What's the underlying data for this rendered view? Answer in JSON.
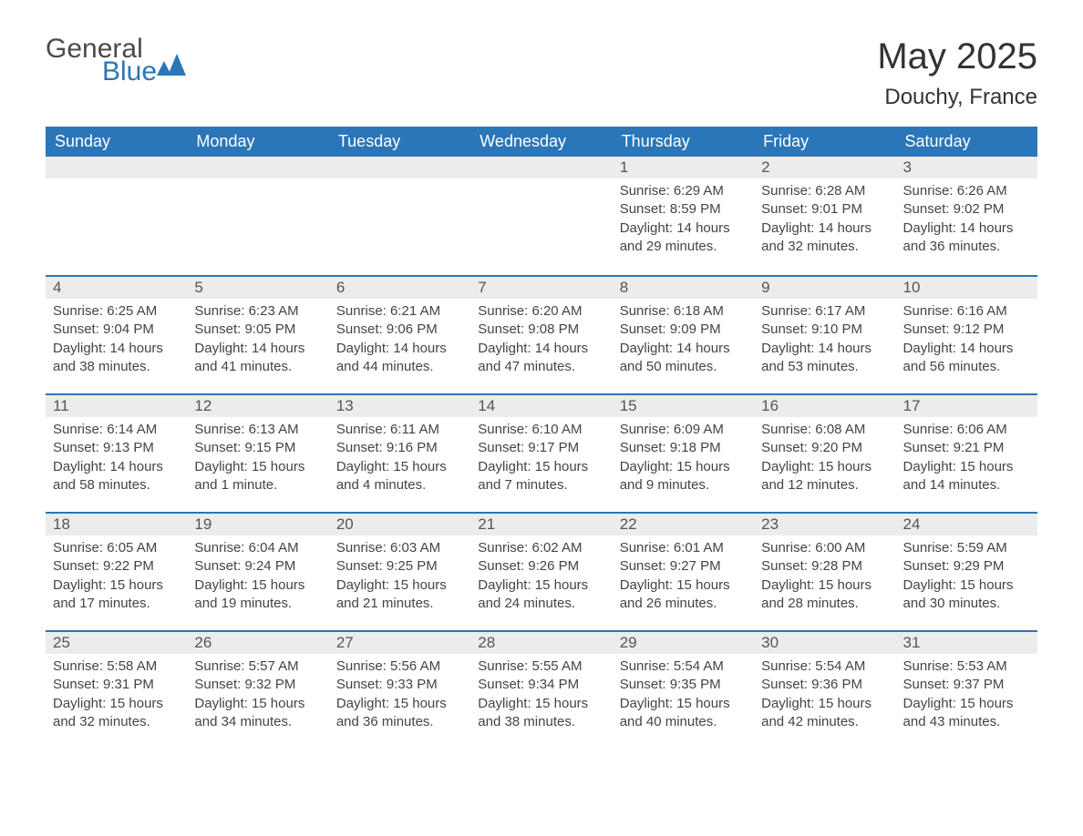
{
  "logo": {
    "general": "General",
    "blue": "Blue",
    "icon_fill": "#2a76b8"
  },
  "header": {
    "title": "May 2025",
    "location": "Douchy, France"
  },
  "colors": {
    "header_bg": "#2a76b8",
    "header_text": "#ffffff",
    "daybar_bg": "#ececec",
    "daybar_border": "#2a76b8",
    "body_text": "#444444"
  },
  "day_names": [
    "Sunday",
    "Monday",
    "Tuesday",
    "Wednesday",
    "Thursday",
    "Friday",
    "Saturday"
  ],
  "weeks": [
    [
      null,
      null,
      null,
      null,
      {
        "d": "1",
        "sr": "Sunrise: 6:29 AM",
        "ss": "Sunset: 8:59 PM",
        "dl": "Daylight: 14 hours and 29 minutes."
      },
      {
        "d": "2",
        "sr": "Sunrise: 6:28 AM",
        "ss": "Sunset: 9:01 PM",
        "dl": "Daylight: 14 hours and 32 minutes."
      },
      {
        "d": "3",
        "sr": "Sunrise: 6:26 AM",
        "ss": "Sunset: 9:02 PM",
        "dl": "Daylight: 14 hours and 36 minutes."
      }
    ],
    [
      {
        "d": "4",
        "sr": "Sunrise: 6:25 AM",
        "ss": "Sunset: 9:04 PM",
        "dl": "Daylight: 14 hours and 38 minutes."
      },
      {
        "d": "5",
        "sr": "Sunrise: 6:23 AM",
        "ss": "Sunset: 9:05 PM",
        "dl": "Daylight: 14 hours and 41 minutes."
      },
      {
        "d": "6",
        "sr": "Sunrise: 6:21 AM",
        "ss": "Sunset: 9:06 PM",
        "dl": "Daylight: 14 hours and 44 minutes."
      },
      {
        "d": "7",
        "sr": "Sunrise: 6:20 AM",
        "ss": "Sunset: 9:08 PM",
        "dl": "Daylight: 14 hours and 47 minutes."
      },
      {
        "d": "8",
        "sr": "Sunrise: 6:18 AM",
        "ss": "Sunset: 9:09 PM",
        "dl": "Daylight: 14 hours and 50 minutes."
      },
      {
        "d": "9",
        "sr": "Sunrise: 6:17 AM",
        "ss": "Sunset: 9:10 PM",
        "dl": "Daylight: 14 hours and 53 minutes."
      },
      {
        "d": "10",
        "sr": "Sunrise: 6:16 AM",
        "ss": "Sunset: 9:12 PM",
        "dl": "Daylight: 14 hours and 56 minutes."
      }
    ],
    [
      {
        "d": "11",
        "sr": "Sunrise: 6:14 AM",
        "ss": "Sunset: 9:13 PM",
        "dl": "Daylight: 14 hours and 58 minutes."
      },
      {
        "d": "12",
        "sr": "Sunrise: 6:13 AM",
        "ss": "Sunset: 9:15 PM",
        "dl": "Daylight: 15 hours and 1 minute."
      },
      {
        "d": "13",
        "sr": "Sunrise: 6:11 AM",
        "ss": "Sunset: 9:16 PM",
        "dl": "Daylight: 15 hours and 4 minutes."
      },
      {
        "d": "14",
        "sr": "Sunrise: 6:10 AM",
        "ss": "Sunset: 9:17 PM",
        "dl": "Daylight: 15 hours and 7 minutes."
      },
      {
        "d": "15",
        "sr": "Sunrise: 6:09 AM",
        "ss": "Sunset: 9:18 PM",
        "dl": "Daylight: 15 hours and 9 minutes."
      },
      {
        "d": "16",
        "sr": "Sunrise: 6:08 AM",
        "ss": "Sunset: 9:20 PM",
        "dl": "Daylight: 15 hours and 12 minutes."
      },
      {
        "d": "17",
        "sr": "Sunrise: 6:06 AM",
        "ss": "Sunset: 9:21 PM",
        "dl": "Daylight: 15 hours and 14 minutes."
      }
    ],
    [
      {
        "d": "18",
        "sr": "Sunrise: 6:05 AM",
        "ss": "Sunset: 9:22 PM",
        "dl": "Daylight: 15 hours and 17 minutes."
      },
      {
        "d": "19",
        "sr": "Sunrise: 6:04 AM",
        "ss": "Sunset: 9:24 PM",
        "dl": "Daylight: 15 hours and 19 minutes."
      },
      {
        "d": "20",
        "sr": "Sunrise: 6:03 AM",
        "ss": "Sunset: 9:25 PM",
        "dl": "Daylight: 15 hours and 21 minutes."
      },
      {
        "d": "21",
        "sr": "Sunrise: 6:02 AM",
        "ss": "Sunset: 9:26 PM",
        "dl": "Daylight: 15 hours and 24 minutes."
      },
      {
        "d": "22",
        "sr": "Sunrise: 6:01 AM",
        "ss": "Sunset: 9:27 PM",
        "dl": "Daylight: 15 hours and 26 minutes."
      },
      {
        "d": "23",
        "sr": "Sunrise: 6:00 AM",
        "ss": "Sunset: 9:28 PM",
        "dl": "Daylight: 15 hours and 28 minutes."
      },
      {
        "d": "24",
        "sr": "Sunrise: 5:59 AM",
        "ss": "Sunset: 9:29 PM",
        "dl": "Daylight: 15 hours and 30 minutes."
      }
    ],
    [
      {
        "d": "25",
        "sr": "Sunrise: 5:58 AM",
        "ss": "Sunset: 9:31 PM",
        "dl": "Daylight: 15 hours and 32 minutes."
      },
      {
        "d": "26",
        "sr": "Sunrise: 5:57 AM",
        "ss": "Sunset: 9:32 PM",
        "dl": "Daylight: 15 hours and 34 minutes."
      },
      {
        "d": "27",
        "sr": "Sunrise: 5:56 AM",
        "ss": "Sunset: 9:33 PM",
        "dl": "Daylight: 15 hours and 36 minutes."
      },
      {
        "d": "28",
        "sr": "Sunrise: 5:55 AM",
        "ss": "Sunset: 9:34 PM",
        "dl": "Daylight: 15 hours and 38 minutes."
      },
      {
        "d": "29",
        "sr": "Sunrise: 5:54 AM",
        "ss": "Sunset: 9:35 PM",
        "dl": "Daylight: 15 hours and 40 minutes."
      },
      {
        "d": "30",
        "sr": "Sunrise: 5:54 AM",
        "ss": "Sunset: 9:36 PM",
        "dl": "Daylight: 15 hours and 42 minutes."
      },
      {
        "d": "31",
        "sr": "Sunrise: 5:53 AM",
        "ss": "Sunset: 9:37 PM",
        "dl": "Daylight: 15 hours and 43 minutes."
      }
    ]
  ]
}
